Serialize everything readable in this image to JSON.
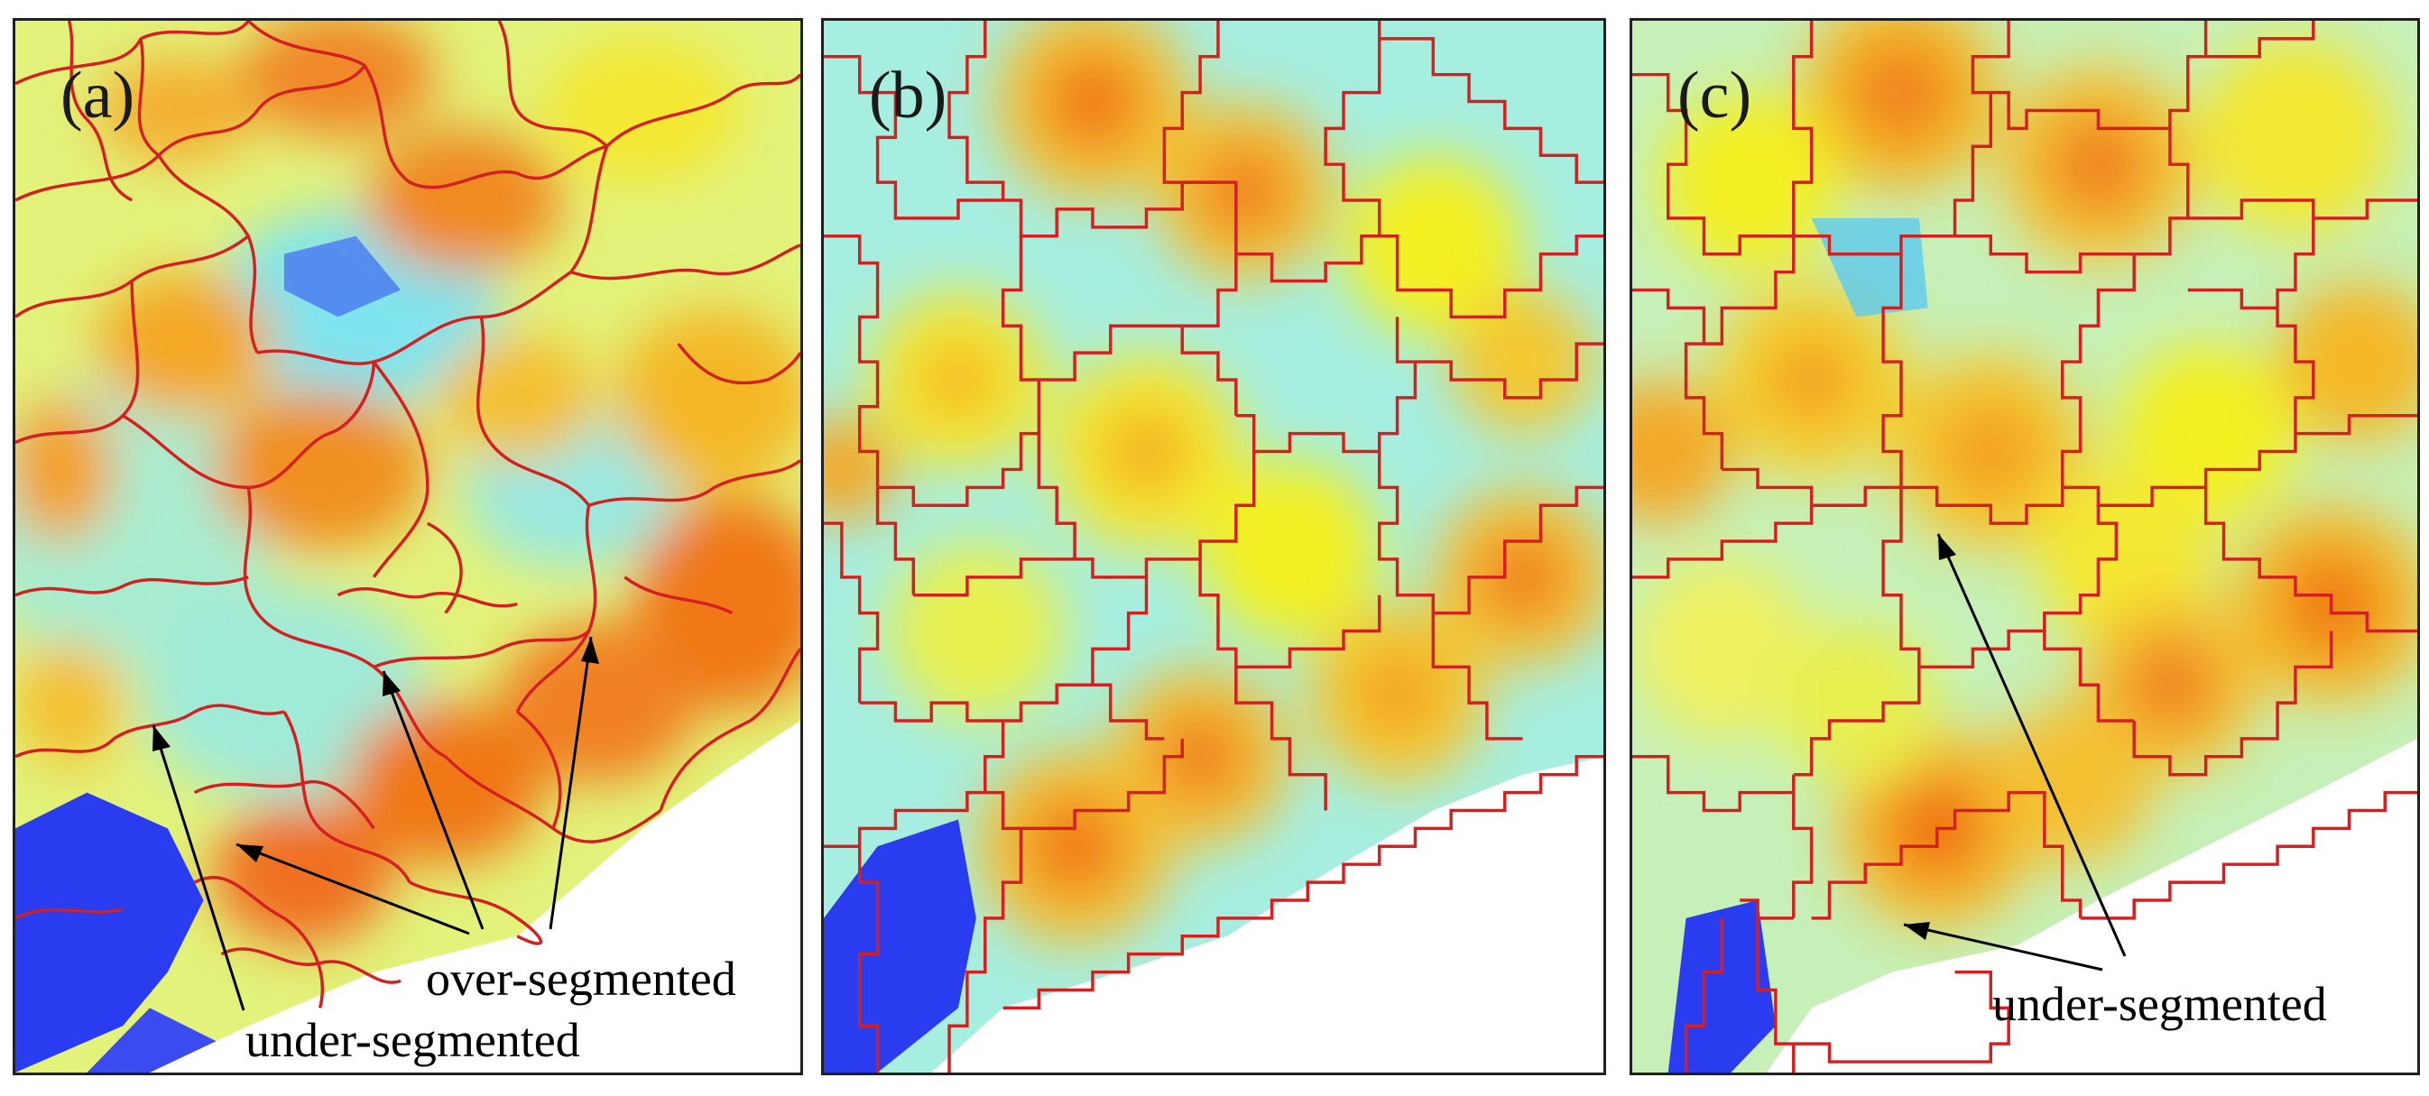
{
  "panels": [
    {
      "label": "(a)"
    },
    {
      "label": "(b)"
    },
    {
      "label": "(c)"
    }
  ],
  "annotations": {
    "a_over": "over-segmented",
    "a_under": "under-segmented",
    "c_under": "under-segmented"
  },
  "colors": {
    "border": "#d42020",
    "hot": "#f07010",
    "warm": "#f8b820",
    "yellow": "#f4f020",
    "light": "#d8f4a0",
    "cyan": "#70e8e8",
    "blue": "#2a3cf0",
    "frame": "#202020"
  }
}
